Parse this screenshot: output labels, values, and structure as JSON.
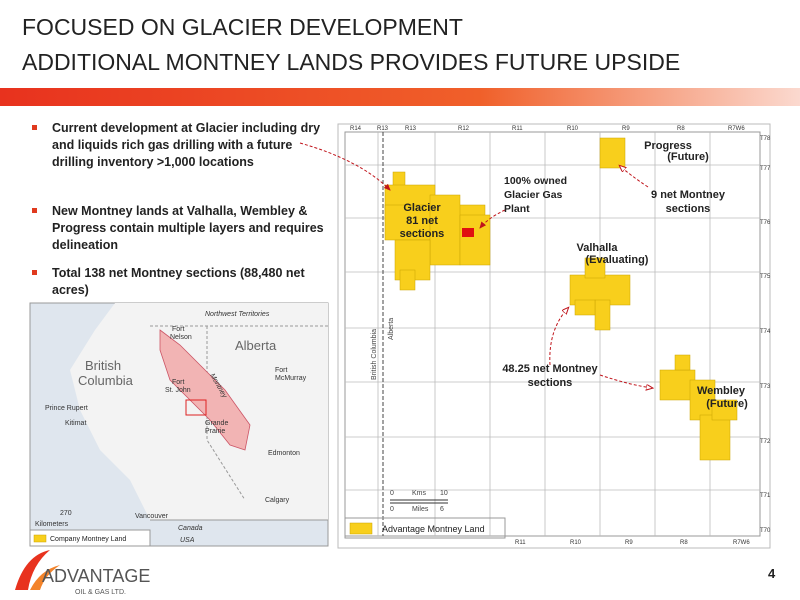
{
  "header": {
    "title_lines": [
      "FOCUSED ON GLACIER DEVELOPMENT",
      "ADDITIONAL MONTNEY LANDS PROVIDES FUTURE UPSIDE"
    ]
  },
  "bullets": [
    "Current development at Glacier including dry and liquids rich gas drilling with a future drilling inventory >1,000 locations",
    "New Montney lands at Valhalla, Wembley & Progress contain multiple layers and requires delineation",
    "Total 138 net Montney sections (88,480 net acres)"
  ],
  "main_map": {
    "top_labels": [
      "R14",
      "R13",
      "R13",
      "R12",
      "R11",
      "R10",
      "R9",
      "R8",
      "R7W6"
    ],
    "right_labels": [
      "T78",
      "T77",
      "T76",
      "T75",
      "T74",
      "T73",
      "T72",
      "T71",
      "T70"
    ],
    "bottom_labels": [
      "R11",
      "R10",
      "R9",
      "R8",
      "R7W6"
    ],
    "glacier": [
      "Glacier",
      "81 net",
      "sections"
    ],
    "plant": [
      "100% owned",
      "Glacier Gas",
      "Plant"
    ],
    "progress": [
      "Progress",
      "(Future)"
    ],
    "progress_sections": [
      "9 net Montney",
      "sections"
    ],
    "valhalla": [
      "Valhalla",
      "(Evaluating)"
    ],
    "valhalla_sections": [
      "48.25 net Montney",
      "sections"
    ],
    "wembley": [
      "Wembley",
      "(Future)"
    ],
    "provinces": [
      "British Columbia",
      "Alberta"
    ],
    "scale": {
      "kms": [
        "0",
        "Kms",
        "10"
      ],
      "miles": [
        "0",
        "Miles",
        "6"
      ]
    },
    "legend": "Advantage Montney Land"
  },
  "inset_map": {
    "labels": [
      "Northwest Territories",
      "Alberta",
      "British",
      "Columbia",
      "Fort",
      "Nelson",
      "Fort",
      "St. John",
      "Grande",
      "Prairie",
      "Montney",
      "Fort",
      "McMurray",
      "Prince Rupert",
      "Kitimat",
      "Edmonton",
      "Calgary",
      "Vancouver",
      "Canada",
      "USA"
    ],
    "scale": [
      "270",
      "Kilometers"
    ],
    "legend": "Company Montney Land"
  },
  "logo": {
    "name": "ADVANTAGE",
    "sub": "OIL & GAS LTD."
  },
  "page_number": "4"
}
